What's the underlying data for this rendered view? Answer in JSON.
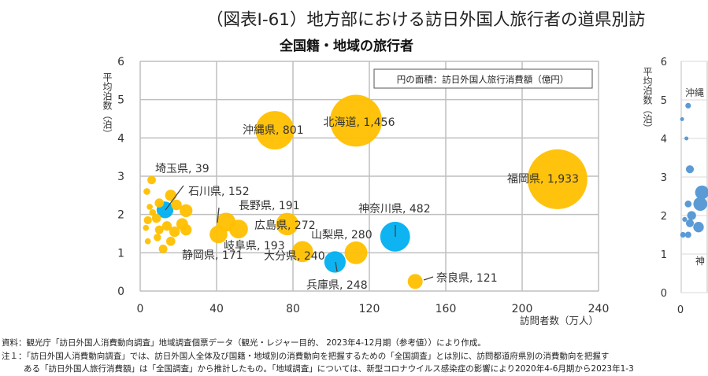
{
  "figure_title": "（図表Ⅰ-61）地方部における訪日外国人旅行者の道県別訪",
  "chart_data": [
    {
      "type": "scatter",
      "subtitle": "全国籍・地域の旅行者",
      "xlabel": "訪問者数（万人）",
      "ylabel": "平均泊数（泊）",
      "xlim": [
        0,
        240
      ],
      "ylim": [
        0,
        6
      ],
      "xticks": [
        "0",
        "40",
        "80",
        "120",
        "160",
        "200",
        "240"
      ],
      "yticks": [
        "0",
        "1",
        "2",
        "3",
        "4",
        "5",
        "6"
      ],
      "grid": true,
      "legend": "円の面積：訪日外国人旅行消費額（億円）",
      "legend_position": "top-right",
      "colors": {
        "default": "#ffc000",
        "highlight": "#00b0f0"
      },
      "points": [
        {
          "label": "北海道, 1,456",
          "x": 113,
          "y": 4.45,
          "size": 1456,
          "color": "#ffc000"
        },
        {
          "label": "沖縄県, 801",
          "x": 70.5,
          "y": 4.2,
          "size": 801,
          "color": "#ffc000"
        },
        {
          "label": "福岡県, 1,933",
          "x": 218.5,
          "y": 2.92,
          "size": 1933,
          "color": "#ffc000"
        },
        {
          "label": "神奈川県, 482",
          "x": 133.5,
          "y": 1.42,
          "size": 482,
          "color": "#00b0f0"
        },
        {
          "label": "山梨県, 280",
          "x": 113,
          "y": 1.0,
          "size": 280,
          "color": "#ffc000"
        },
        {
          "label": "兵庫県, 248",
          "x": 102,
          "y": 0.76,
          "size": 248,
          "color": "#00b0f0"
        },
        {
          "label": "大分県, 240",
          "x": 85,
          "y": 1.03,
          "size": 240,
          "color": "#ffc000"
        },
        {
          "label": "広島県, 272",
          "x": 77,
          "y": 1.75,
          "size": 272,
          "color": "#ffc000"
        },
        {
          "label": "奈良県, 121",
          "x": 144,
          "y": 0.25,
          "size": 121,
          "color": "#ffc000"
        },
        {
          "label": "長野県, 191",
          "x": 51.5,
          "y": 1.62,
          "size": 191,
          "color": "#ffc000"
        },
        {
          "label": "岐阜県, 193",
          "x": 45,
          "y": 1.8,
          "size": 193,
          "color": "#ffc000"
        },
        {
          "label": "静岡県, 171",
          "x": 41,
          "y": 1.48,
          "size": 171,
          "color": "#ffc000"
        },
        {
          "label": "石川県, 152",
          "x": 13,
          "y": 2.12,
          "size": 152,
          "color": "#00b0f0"
        },
        {
          "label": "埼玉県, 39",
          "x": 6,
          "y": 2.9,
          "size": 39,
          "color": "#ffc000"
        },
        {
          "label": "",
          "x": 3.5,
          "y": 2.6,
          "size": 25,
          "color": "#ffc000"
        },
        {
          "label": "",
          "x": 10,
          "y": 2.3,
          "size": 45,
          "color": "#ffc000"
        },
        {
          "label": "",
          "x": 16,
          "y": 2.5,
          "size": 70,
          "color": "#ffc000"
        },
        {
          "label": "",
          "x": 19,
          "y": 2.25,
          "size": 60,
          "color": "#ffc000"
        },
        {
          "label": "",
          "x": 24,
          "y": 2.1,
          "size": 90,
          "color": "#ffc000"
        },
        {
          "label": "",
          "x": 5,
          "y": 2.2,
          "size": 20,
          "color": "#ffc000"
        },
        {
          "label": "",
          "x": 6.5,
          "y": 2.05,
          "size": 25,
          "color": "#ffc000"
        },
        {
          "label": "",
          "x": 4,
          "y": 1.85,
          "size": 35,
          "color": "#ffc000"
        },
        {
          "label": "",
          "x": 8.5,
          "y": 1.9,
          "size": 45,
          "color": "#ffc000"
        },
        {
          "label": "",
          "x": 3,
          "y": 1.65,
          "size": 20,
          "color": "#ffc000"
        },
        {
          "label": "",
          "x": 10,
          "y": 1.6,
          "size": 40,
          "color": "#ffc000"
        },
        {
          "label": "",
          "x": 14,
          "y": 1.7,
          "size": 50,
          "color": "#ffc000"
        },
        {
          "label": "",
          "x": 18,
          "y": 1.55,
          "size": 60,
          "color": "#ffc000"
        },
        {
          "label": "",
          "x": 22,
          "y": 1.75,
          "size": 75,
          "color": "#ffc000"
        },
        {
          "label": "",
          "x": 24,
          "y": 1.6,
          "size": 70,
          "color": "#ffc000"
        },
        {
          "label": "",
          "x": 4,
          "y": 1.3,
          "size": 20,
          "color": "#ffc000"
        },
        {
          "label": "",
          "x": 9,
          "y": 1.4,
          "size": 30,
          "color": "#ffc000"
        },
        {
          "label": "",
          "x": 16,
          "y": 1.3,
          "size": 45,
          "color": "#ffc000"
        },
        {
          "label": "",
          "x": 12,
          "y": 1.1,
          "size": 40,
          "color": "#ffc000"
        }
      ]
    },
    {
      "type": "scatter",
      "ylabel": "平均泊数（泊）",
      "ylim": [
        0,
        6
      ],
      "yticks": [
        "0",
        "1",
        "2",
        "3",
        "4",
        "5",
        "6"
      ],
      "xticks": [
        "0"
      ],
      "color": "#5b9bd5",
      "label_fragments": [
        "沖縄",
        "神"
      ],
      "points": [
        {
          "x": 4,
          "y": 4.85,
          "size": 20
        },
        {
          "x": 0.5,
          "y": 4.5,
          "size": 10
        },
        {
          "x": 3,
          "y": 4.0,
          "size": 10
        },
        {
          "x": 5,
          "y": 3.2,
          "size": 40
        },
        {
          "x": 4,
          "y": 2.3,
          "size": 30
        },
        {
          "x": 2,
          "y": 1.9,
          "size": 15
        },
        {
          "x": 5,
          "y": 1.8,
          "size": 40
        },
        {
          "x": 6,
          "y": 2.0,
          "size": 50
        },
        {
          "x": 4,
          "y": 1.5,
          "size": 25
        },
        {
          "x": 10,
          "y": 1.7,
          "size": 70
        },
        {
          "x": 11,
          "y": 2.3,
          "size": 120
        },
        {
          "x": 12,
          "y": 2.6,
          "size": 120
        },
        {
          "x": 1,
          "y": 1.5,
          "size": 20
        }
      ]
    }
  ],
  "footnotes": [
    "資料：観光庁「訪日外国人消費動向調査」地域調査個票データ（観光・レジャー目的、 2023年4-12月期（参考値））により作成。",
    "注１：「訪日外国人消費動向調査」では、訪日外国人全体及び国籍・地域別の消費動向を把握するための「全国調査」とは別に、訪問都道府県別の消費動向を把握す",
    "ある「訪日外国人旅行消費額」は「全国調査」から推計したもの。「地域調査」については、新型コロナウイルス感染症の影響により2020年4-6月期から2023年1-3"
  ]
}
